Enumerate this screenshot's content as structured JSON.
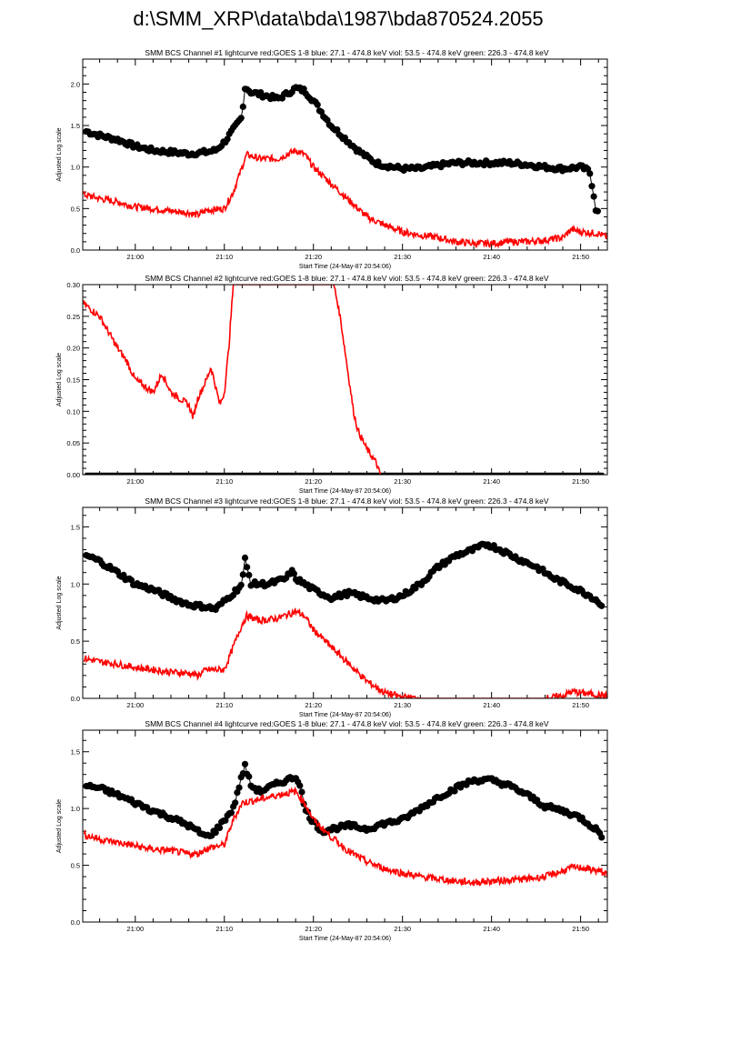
{
  "title": "d:\\SMM_XRP\\data\\bda\\1987\\bda870524.2055",
  "colors": {
    "goes": "#ff0000",
    "bcs": "#000000"
  },
  "chart_data": [
    {
      "type": "line+scatter",
      "title": "SMM BCS Channel #1 lightcurve  red:GOES 1-8  blue: 27.1 - 474.8 keV  viol: 53.5 - 474.8 keV  green: 226.3 - 474.8 keV",
      "xlabel": "Start Time (24-May-87 20:54:06)",
      "ylabel": "Adjusted Log scale",
      "x_units": "minutes after 21:00",
      "xlim": [
        -5.9,
        53.0
      ],
      "xticks": [
        {
          "v": 0,
          "label": "21:00"
        },
        {
          "v": 10,
          "label": "21:10"
        },
        {
          "v": 20,
          "label": "21:20"
        },
        {
          "v": 30,
          "label": "21:30"
        },
        {
          "v": 40,
          "label": "21:40"
        },
        {
          "v": 50,
          "label": "21:50"
        }
      ],
      "ylim": [
        0,
        2.3
      ],
      "yticks": [
        {
          "v": 0,
          "label": "0.0"
        },
        {
          "v": 0.5,
          "label": "0.5"
        },
        {
          "v": 1.0,
          "label": "1.0"
        },
        {
          "v": 1.5,
          "label": "1.5"
        },
        {
          "v": 2.0,
          "label": "2.0"
        }
      ],
      "series": [
        {
          "name": "BCS",
          "style": "points",
          "x": [
            -5.5,
            -4,
            -2,
            0,
            2,
            4,
            6,
            8,
            9,
            10,
            11,
            12,
            12.3,
            13,
            15,
            16,
            17,
            18,
            19,
            20,
            21,
            22,
            23,
            24,
            25,
            26,
            27,
            28,
            30,
            32,
            34,
            36,
            38,
            40,
            42,
            44,
            46,
            48,
            50,
            51,
            51.5,
            51.8,
            52
          ],
          "y": [
            1.43,
            1.38,
            1.33,
            1.25,
            1.2,
            1.18,
            1.16,
            1.18,
            1.2,
            1.3,
            1.45,
            1.6,
            1.97,
            1.9,
            1.85,
            1.82,
            1.88,
            1.95,
            1.92,
            1.8,
            1.65,
            1.5,
            1.4,
            1.3,
            1.2,
            1.12,
            1.05,
            1.02,
            0.98,
            0.98,
            1.02,
            1.05,
            1.05,
            1.05,
            1.05,
            1.03,
            1.0,
            0.98,
            1.0,
            0.95,
            0.65,
            0.42,
            0.48
          ]
        },
        {
          "name": "GOES 1-8",
          "style": "line",
          "x": [
            -5.8,
            -4,
            -2,
            0,
            2,
            4,
            6,
            7,
            8,
            10,
            11,
            12,
            12.5,
            14,
            16,
            18,
            19,
            20,
            22,
            24,
            26,
            28,
            30,
            32,
            34,
            36,
            38,
            40,
            42,
            44,
            46,
            48,
            49,
            50,
            52,
            53
          ],
          "y": [
            0.67,
            0.62,
            0.58,
            0.52,
            0.5,
            0.47,
            0.45,
            0.42,
            0.48,
            0.5,
            0.7,
            1.0,
            1.15,
            1.1,
            1.1,
            1.2,
            1.15,
            1.0,
            0.8,
            0.6,
            0.4,
            0.3,
            0.22,
            0.18,
            0.15,
            0.1,
            0.08,
            0.08,
            0.1,
            0.1,
            0.12,
            0.15,
            0.25,
            0.22,
            0.2,
            0.15
          ]
        }
      ]
    },
    {
      "type": "line+scatter",
      "title": "SMM BCS Channel #2 lightcurve  red:GOES 1-8  blue: 27.1 - 474.8 keV  viol: 53.5 - 474.8 keV  green: 226.3 - 474.8 keV",
      "xlabel": "Start Time (24-May-87 20:54:06)",
      "ylabel": "Adjusted Log scale",
      "x_units": "minutes after 21:00",
      "xlim": [
        -5.9,
        53.0
      ],
      "xticks": [
        {
          "v": 0,
          "label": "21:00"
        },
        {
          "v": 10,
          "label": "21:10"
        },
        {
          "v": 20,
          "label": "21:20"
        },
        {
          "v": 30,
          "label": "21:30"
        },
        {
          "v": 40,
          "label": "21:40"
        },
        {
          "v": 50,
          "label": "21:50"
        }
      ],
      "ylim": [
        0,
        0.3
      ],
      "yticks": [
        {
          "v": 0,
          "label": "0.00"
        },
        {
          "v": 0.05,
          "label": "0.05"
        },
        {
          "v": 0.1,
          "label": "0.10"
        },
        {
          "v": 0.15,
          "label": "0.15"
        },
        {
          "v": 0.2,
          "label": "0.20"
        },
        {
          "v": 0.25,
          "label": "0.25"
        },
        {
          "v": 0.3,
          "label": "0.30"
        }
      ],
      "series": [
        {
          "name": "BCS",
          "style": "points",
          "x": [
            -5.5,
            0,
            10,
            20,
            30,
            40,
            52.5
          ],
          "y": [
            0,
            0,
            0,
            0,
            0,
            0,
            0
          ]
        },
        {
          "name": "GOES 1-8",
          "style": "line",
          "x": [
            -5.8,
            -4,
            -2,
            -1,
            0,
            1,
            2,
            3,
            4,
            5,
            6,
            6.5,
            7,
            8,
            8.5,
            9,
            9.5,
            10,
            10.5,
            11,
            12,
            22,
            22.3,
            23,
            23.5,
            24,
            24.5,
            25,
            26,
            27,
            27.5
          ],
          "y": [
            0.27,
            0.25,
            0.2,
            0.18,
            0.15,
            0.14,
            0.13,
            0.16,
            0.13,
            0.12,
            0.11,
            0.09,
            0.12,
            0.15,
            0.17,
            0.14,
            0.11,
            0.13,
            0.2,
            0.3,
            0.5,
            0.5,
            0.3,
            0.25,
            0.2,
            0.15,
            0.1,
            0.07,
            0.04,
            0.02,
            0.0
          ]
        }
      ]
    },
    {
      "type": "line+scatter",
      "title": "SMM BCS Channel #3 lightcurve  red:GOES 1-8  blue: 27.1 - 474.8 keV  viol: 53.5 - 474.8 keV  green: 226.3 - 474.8 keV",
      "xlabel": "Start Time (24-May-87 20:54:06)",
      "ylabel": "Adjusted Log scale",
      "x_units": "minutes after 21:00",
      "xlim": [
        -5.9,
        53.0
      ],
      "xticks": [
        {
          "v": 0,
          "label": "21:00"
        },
        {
          "v": 10,
          "label": "21:10"
        },
        {
          "v": 20,
          "label": "21:20"
        },
        {
          "v": 30,
          "label": "21:30"
        },
        {
          "v": 40,
          "label": "21:40"
        },
        {
          "v": 50,
          "label": "21:50"
        }
      ],
      "ylim": [
        0,
        1.67
      ],
      "yticks": [
        {
          "v": 0,
          "label": "0.0"
        },
        {
          "v": 0.5,
          "label": "0.5"
        },
        {
          "v": 1.0,
          "label": "1.0"
        },
        {
          "v": 1.5,
          "label": "1.5"
        }
      ],
      "series": [
        {
          "name": "BCS",
          "style": "points",
          "x": [
            -5.5,
            -4,
            -2,
            0,
            2,
            4,
            6,
            8,
            9,
            10,
            11,
            12,
            12.3,
            13,
            15,
            17,
            17.5,
            18,
            20,
            22,
            24,
            26,
            28,
            30,
            32,
            34,
            36,
            38,
            39.5,
            41,
            43,
            45,
            47,
            49,
            51,
            52,
            52.5
          ],
          "y": [
            1.25,
            1.2,
            1.1,
            1.0,
            0.95,
            0.88,
            0.82,
            0.8,
            0.78,
            0.85,
            0.92,
            1.0,
            1.22,
            1.0,
            1.0,
            1.05,
            1.12,
            1.05,
            0.95,
            0.88,
            0.92,
            0.88,
            0.85,
            0.9,
            1.0,
            1.15,
            1.25,
            1.3,
            1.35,
            1.3,
            1.22,
            1.15,
            1.05,
            0.98,
            0.9,
            0.85,
            0.78
          ]
        },
        {
          "name": "GOES 1-8",
          "style": "line",
          "x": [
            -5.8,
            -4,
            -2,
            0,
            2,
            4,
            6,
            7,
            8,
            10,
            11,
            12,
            12.5,
            14,
            16,
            18,
            19,
            20,
            22,
            24,
            26,
            28,
            30,
            32,
            34,
            40,
            46,
            48,
            49,
            50,
            52,
            53
          ],
          "y": [
            0.35,
            0.32,
            0.3,
            0.27,
            0.25,
            0.23,
            0.22,
            0.2,
            0.25,
            0.25,
            0.45,
            0.65,
            0.72,
            0.68,
            0.7,
            0.76,
            0.72,
            0.6,
            0.45,
            0.3,
            0.15,
            0.05,
            0.01,
            0.0,
            0.0,
            0.0,
            0.0,
            0.02,
            0.06,
            0.05,
            0.03,
            0.02
          ]
        }
      ]
    },
    {
      "type": "line+scatter",
      "title": "SMM BCS Channel #4 lightcurve  red:GOES 1-8  blue: 27.1 - 474.8 keV  viol: 53.5 - 474.8 keV  green: 226.3 - 474.8 keV",
      "xlabel": "Start Time (24-May-87 20:54:06)",
      "ylabel": "Adjusted Log scale",
      "x_units": "minutes after 21:00",
      "xlim": [
        -5.9,
        53.0
      ],
      "xticks": [
        {
          "v": 0,
          "label": "21:00"
        },
        {
          "v": 10,
          "label": "21:10"
        },
        {
          "v": 20,
          "label": "21:20"
        },
        {
          "v": 30,
          "label": "21:30"
        },
        {
          "v": 40,
          "label": "21:40"
        },
        {
          "v": 50,
          "label": "21:50"
        }
      ],
      "ylim": [
        0,
        1.69
      ],
      "yticks": [
        {
          "v": 0,
          "label": "0.0"
        },
        {
          "v": 0.5,
          "label": "0.5"
        },
        {
          "v": 1.0,
          "label": "1.0"
        },
        {
          "v": 1.5,
          "label": "1.5"
        }
      ],
      "series": [
        {
          "name": "BCS",
          "style": "points",
          "x": [
            -5.5,
            -4,
            -2,
            0,
            2,
            4,
            6,
            7,
            8,
            9,
            10,
            11,
            11.5,
            12.3,
            13,
            14,
            16,
            17,
            18,
            18.5,
            19,
            20,
            21,
            22,
            24,
            26,
            28,
            30,
            32,
            34,
            36,
            38,
            40,
            42,
            44,
            46,
            48,
            50,
            52,
            52.5
          ],
          "y": [
            1.2,
            1.18,
            1.12,
            1.05,
            0.98,
            0.92,
            0.85,
            0.8,
            0.75,
            0.8,
            0.9,
            1.0,
            1.15,
            1.38,
            1.2,
            1.15,
            1.22,
            1.25,
            1.28,
            1.22,
            1.0,
            0.88,
            0.8,
            0.82,
            0.85,
            0.82,
            0.87,
            0.9,
            1.0,
            1.1,
            1.18,
            1.25,
            1.25,
            1.2,
            1.12,
            1.02,
            0.98,
            0.92,
            0.8,
            0.75
          ]
        },
        {
          "name": "GOES 1-8",
          "style": "line",
          "x": [
            -5.8,
            -4,
            -2,
            0,
            2,
            4,
            6,
            7,
            8,
            10,
            11,
            12,
            14,
            16,
            18,
            19,
            20,
            22,
            24,
            26,
            28,
            30,
            32,
            34,
            36,
            38,
            40,
            42,
            44,
            46,
            48,
            49,
            50,
            52,
            53
          ],
          "y": [
            0.77,
            0.73,
            0.7,
            0.67,
            0.64,
            0.63,
            0.6,
            0.6,
            0.65,
            0.68,
            0.9,
            1.05,
            1.08,
            1.12,
            1.15,
            1.05,
            0.9,
            0.75,
            0.62,
            0.53,
            0.47,
            0.43,
            0.4,
            0.38,
            0.36,
            0.35,
            0.36,
            0.37,
            0.38,
            0.4,
            0.45,
            0.48,
            0.48,
            0.45,
            0.42
          ]
        }
      ]
    }
  ]
}
